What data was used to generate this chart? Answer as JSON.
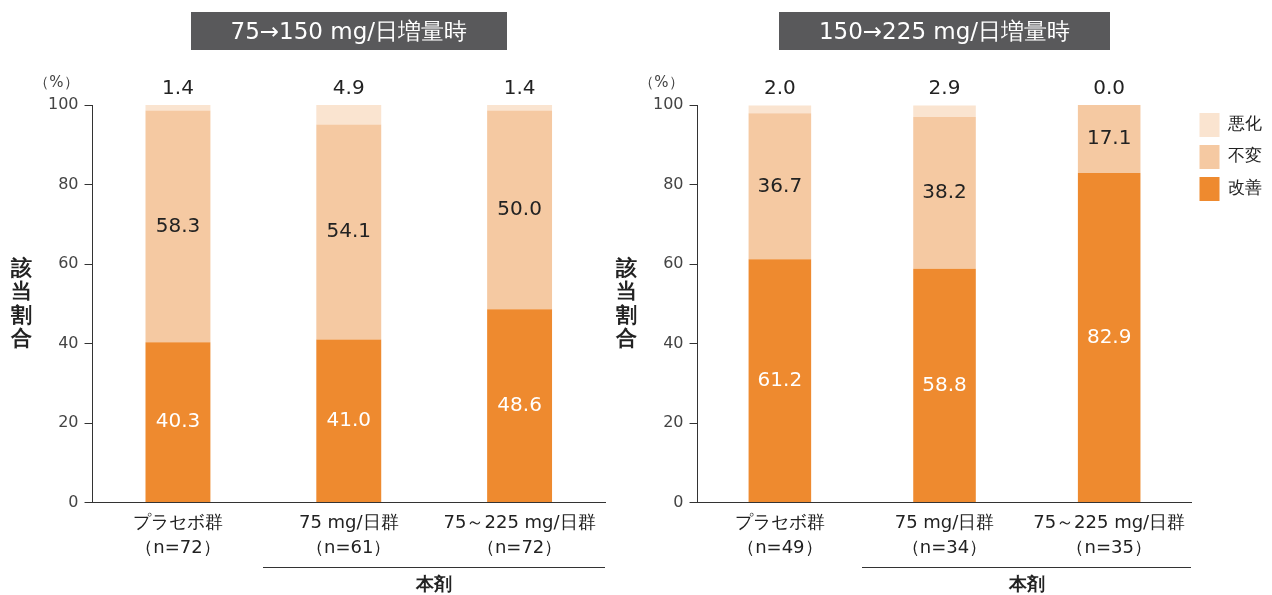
{
  "chart_data": [
    {
      "type": "bar",
      "title": "75→150 mg/日増量時",
      "ylabel": "該当割合",
      "annotations": [
        "（%）",
        "本剤"
      ],
      "categories": [
        "プラセボ群（n=72）",
        "75 mg/日群（n=61）",
        "75～225 mg/日群（n=72）"
      ],
      "stacked": true,
      "ylim": [
        0,
        100
      ],
      "yticks": [
        0,
        20,
        40,
        60,
        80,
        100
      ],
      "series": [
        {
          "color": "#ee8a2f",
          "values": [
            40.3,
            41.0,
            48.6
          ],
          "value_labels": [
            "40.3",
            "41.0",
            "48.6"
          ]
        },
        {
          "color": "#f5c9a2",
          "values": [
            58.3,
            54.1,
            50.0
          ],
          "value_labels": [
            "58.3",
            "54.1",
            "50.0"
          ]
        },
        {
          "color": "#fae4d0",
          "values": [
            1.4,
            4.9,
            1.4
          ],
          "value_labels": [
            "1.4",
            "4.9",
            "1.4"
          ]
        }
      ]
    },
    {
      "type": "bar",
      "title": "150→225 mg/日増量時",
      "ylabel": "該当割合",
      "annotations": [
        "（%）",
        "本剤"
      ],
      "categories": [
        "プラセボ群（n=49）",
        "75 mg/日群（n=34）",
        "75～225 mg/日群（n=35）"
      ],
      "stacked": true,
      "ylim": [
        0,
        100
      ],
      "yticks": [
        0,
        20,
        40,
        60,
        80,
        100
      ],
      "legend": "top right",
      "series": [
        {
          "name": "改善",
          "color": "#ee8a2f",
          "values": [
            61.2,
            58.8,
            82.9
          ],
          "value_labels": [
            "61.2",
            "58.8",
            "82.9"
          ]
        },
        {
          "name": "不変",
          "color": "#f5c9a2",
          "values": [
            36.7,
            38.2,
            17.1
          ],
          "value_labels": [
            "36.7",
            "38.2",
            "17.1"
          ]
        },
        {
          "name": "悪化",
          "color": "#fae4d0",
          "values": [
            2.0,
            2.9,
            0.0
          ],
          "value_labels": [
            "2.0",
            "2.9",
            "0.0"
          ]
        }
      ]
    }
  ]
}
